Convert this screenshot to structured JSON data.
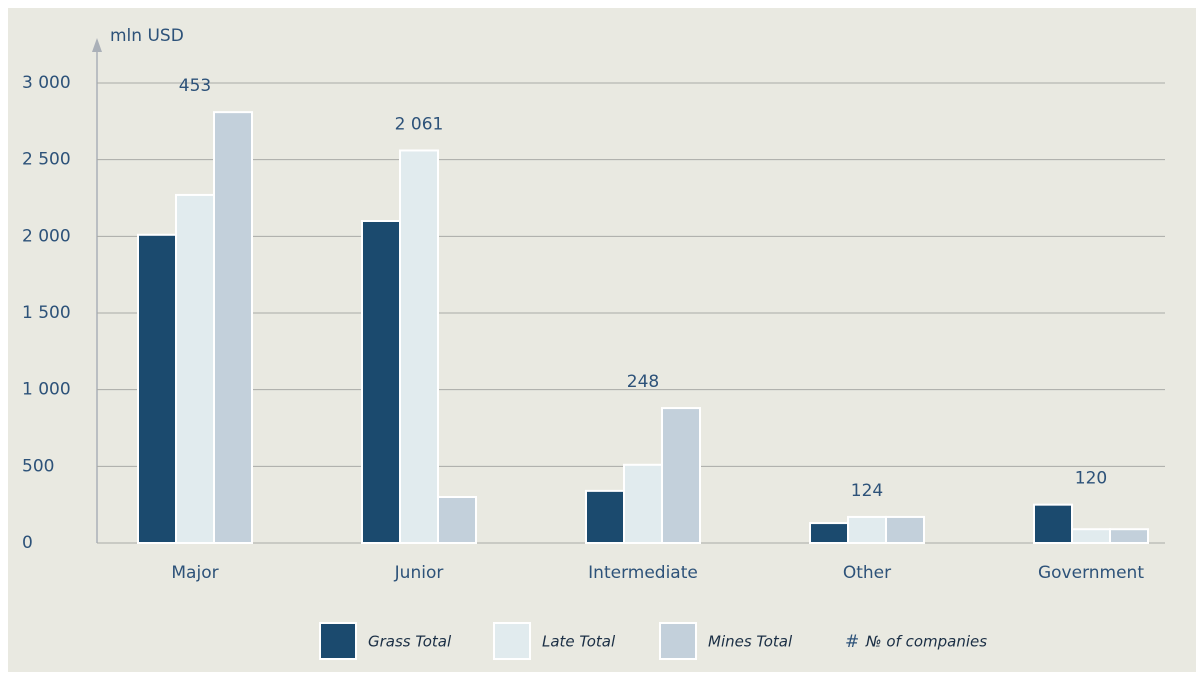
{
  "chart_data": {
    "type": "bar",
    "y_label": "mln USD",
    "categories": [
      "Major",
      "Junior",
      "Intermediate",
      "Other",
      "Government"
    ],
    "series": [
      {
        "name": "Grass Total",
        "color": "#1b4a6e",
        "values": [
          2010,
          2100,
          340,
          130,
          250
        ]
      },
      {
        "name": "Late Total",
        "color": "#e1ebee",
        "values": [
          2270,
          2560,
          510,
          170,
          90
        ]
      },
      {
        "name": "Mines Total",
        "color": "#c3d0db",
        "values": [
          2810,
          300,
          880,
          170,
          90
        ]
      }
    ],
    "companies": {
      "name": "№ of companies",
      "marker": "#",
      "values": [
        453,
        2061,
        248,
        124,
        120
      ],
      "value_labels": [
        "453",
        "2 061",
        "248",
        "124",
        "120"
      ]
    },
    "ylim": [
      0,
      3000
    ],
    "yticks": [
      0,
      500,
      {
        "value": 1000,
        "label": "1 000"
      },
      {
        "value": 1500,
        "label": "1 500"
      },
      {
        "value": 2000,
        "label": "2 000"
      },
      {
        "value": 2500,
        "label": "2 500"
      },
      {
        "value": 3000,
        "label": "3 000"
      }
    ],
    "grid": true
  }
}
